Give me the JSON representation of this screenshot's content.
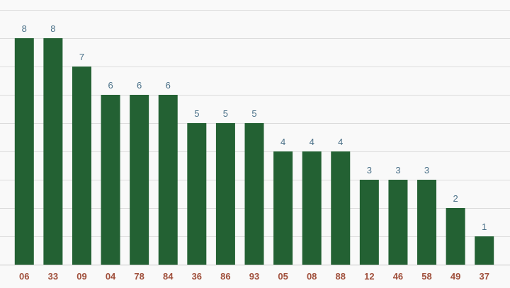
{
  "chart_data": {
    "type": "bar",
    "title": "",
    "xlabel": "",
    "ylabel": "",
    "categories": [
      "06",
      "33",
      "09",
      "04",
      "78",
      "84",
      "36",
      "86",
      "93",
      "05",
      "08",
      "88",
      "12",
      "46",
      "58",
      "49",
      "37"
    ],
    "values": [
      8,
      8,
      7,
      6,
      6,
      6,
      5,
      5,
      5,
      4,
      4,
      4,
      3,
      3,
      3,
      2,
      1
    ],
    "ylim": [
      0,
      9
    ],
    "grid": true,
    "legend": "none",
    "colors": {
      "bar": "#236133",
      "value_label": "#4a7088",
      "tick_label": "#a0503c",
      "background": "#f9f9f9"
    }
  }
}
